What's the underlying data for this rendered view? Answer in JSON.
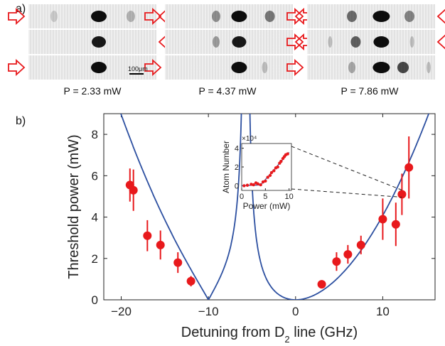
{
  "panel_a": {
    "label": "a)",
    "scale_bar_label": "100μm",
    "columns": [
      {
        "power_label": "P = 2.33 mW"
      },
      {
        "power_label": "P = 4.37 mW"
      },
      {
        "power_label": "P = 7.86 mW"
      }
    ]
  },
  "panel_b": {
    "label": "b)"
  },
  "chart_data": [
    {
      "type": "scatter",
      "xlabel": "Detuning from D2 line (GHz)",
      "ylabel": "Threshold power (mW)",
      "xlim": [
        -22,
        16
      ],
      "ylim": [
        0,
        9
      ],
      "xticks": [
        -20,
        -10,
        0,
        10
      ],
      "yticks": [
        0,
        2,
        4,
        6,
        8
      ],
      "series": [
        {
          "style": "points with error bars",
          "color": "#e8191c",
          "x": [
            -19,
            -18.6,
            -17,
            -15.5,
            -13.5,
            -12,
            3,
            4.7,
            6,
            7.5,
            10,
            11.5,
            12.2,
            13
          ],
          "y": [
            5.55,
            5.3,
            3.1,
            2.65,
            1.8,
            0.9,
            0.75,
            1.85,
            2.2,
            2.65,
            3.9,
            3.65,
            5.1,
            6.4
          ],
          "err": [
            0.8,
            1.0,
            0.75,
            0.7,
            0.5,
            0.25,
            0.15,
            0.45,
            0.45,
            0.45,
            1.0,
            1.05,
            1.0,
            1.5
          ]
        },
        {
          "style": "line",
          "color": "#2c4fa0"
        }
      ],
      "grid": false
    },
    {
      "type": "scatter",
      "xlabel": "Power (mW)",
      "ylabel": "Atom Number",
      "y_multiplier_label": "×10⁴",
      "xlim": [
        0,
        10.5
      ],
      "ylim": [
        -0.5,
        4.5
      ],
      "xticks": [
        0,
        5,
        10
      ],
      "yticks": [
        0,
        2,
        4
      ],
      "series": [
        {
          "style": "points",
          "color": "#e8191c",
          "x": [
            0.5,
            1.2,
            2.0,
            2.5,
            3.0,
            3.4,
            4.0,
            4.5,
            5.0,
            5.5,
            6.0,
            6.3,
            6.8,
            7.2,
            7.6,
            8.0,
            8.3,
            8.7,
            9.0,
            9.3,
            9.7
          ],
          "y": [
            0.0,
            0.05,
            0.15,
            0.1,
            0.3,
            0.2,
            0.1,
            0.4,
            0.5,
            0.9,
            1.1,
            1.4,
            1.6,
            1.9,
            2.0,
            2.4,
            2.6,
            2.9,
            3.1,
            3.3,
            3.4
          ]
        },
        {
          "style": "line",
          "color": "#2c4fa0"
        }
      ]
    }
  ]
}
